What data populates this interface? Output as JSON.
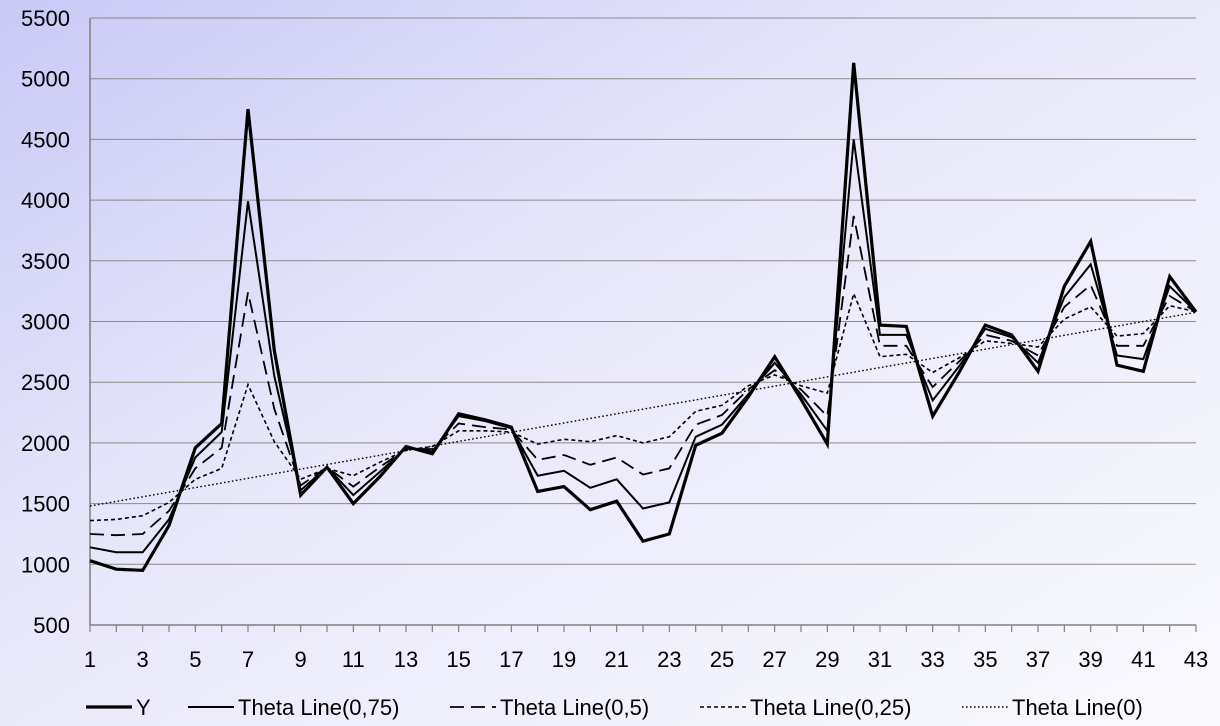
{
  "chart_data": {
    "type": "line",
    "title": "",
    "xlabel": "",
    "ylabel": "",
    "x": [
      1,
      2,
      3,
      4,
      5,
      6,
      7,
      8,
      9,
      10,
      11,
      12,
      13,
      14,
      15,
      16,
      17,
      18,
      19,
      20,
      21,
      22,
      23,
      24,
      25,
      26,
      27,
      28,
      29,
      30,
      31,
      32,
      33,
      34,
      35,
      36,
      37,
      38,
      39,
      40,
      41,
      42,
      43
    ],
    "x_tick_labels": [
      "1",
      "3",
      "5",
      "7",
      "9",
      "11",
      "13",
      "15",
      "17",
      "19",
      "21",
      "23",
      "25",
      "27",
      "29",
      "31",
      "33",
      "35",
      "37",
      "39",
      "41",
      "43"
    ],
    "y_tick_labels": [
      "500",
      "1000",
      "1500",
      "2000",
      "2500",
      "3000",
      "3500",
      "4000",
      "4500",
      "5000",
      "5500"
    ],
    "ylim": [
      500,
      5500
    ],
    "grid": "horizontal",
    "legend_position": "bottom",
    "series": [
      {
        "name": "Y",
        "style": "solid-thick",
        "values": [
          1030,
          960,
          950,
          1320,
          1960,
          2160,
          4750,
          2760,
          1570,
          1800,
          1500,
          1720,
          1970,
          1910,
          2240,
          2190,
          2130,
          1600,
          1640,
          1450,
          1520,
          1190,
          1250,
          1980,
          2080,
          2380,
          2710,
          2360,
          1990,
          5130,
          2970,
          2960,
          2220,
          2580,
          2970,
          2890,
          2590,
          3290,
          3660,
          2640,
          2590,
          3370,
          3080
        ]
      },
      {
        "name": "Theta Line(0,75)",
        "style": "solid-thin",
        "values": [
          1140,
          1100,
          1100,
          1370,
          1880,
          2090,
          3990,
          2550,
          1610,
          1800,
          1570,
          1760,
          1960,
          1930,
          2220,
          2180,
          2120,
          1730,
          1770,
          1630,
          1700,
          1460,
          1510,
          2050,
          2150,
          2400,
          2660,
          2400,
          2100,
          4500,
          2890,
          2890,
          2350,
          2630,
          2940,
          2870,
          2660,
          3200,
          3470,
          2720,
          2690,
          3290,
          3080
        ]
      },
      {
        "name": "Theta Line(0,5)",
        "style": "dashed",
        "values": [
          1250,
          1240,
          1250,
          1440,
          1790,
          1960,
          3240,
          2280,
          1650,
          1800,
          1640,
          1800,
          1950,
          1950,
          2160,
          2130,
          2110,
          1860,
          1900,
          1820,
          1880,
          1740,
          1790,
          2150,
          2230,
          2440,
          2600,
          2440,
          2220,
          3870,
          2800,
          2800,
          2460,
          2670,
          2890,
          2840,
          2720,
          3120,
          3300,
          2800,
          2800,
          3210,
          3080
        ]
      },
      {
        "name": "Theta Line(0,25)",
        "style": "short-dashed",
        "values": [
          1360,
          1370,
          1400,
          1510,
          1700,
          1790,
          2480,
          2010,
          1700,
          1790,
          1730,
          1840,
          1940,
          1970,
          2100,
          2100,
          2090,
          1990,
          2030,
          2010,
          2060,
          2000,
          2050,
          2260,
          2310,
          2470,
          2560,
          2470,
          2410,
          3230,
          2710,
          2730,
          2580,
          2700,
          2840,
          2820,
          2790,
          3020,
          3120,
          2880,
          2900,
          3130,
          3080
        ]
      },
      {
        "name": "Theta Line(0)",
        "style": "dotted",
        "values": [
          1480,
          1518,
          1556,
          1594,
          1632,
          1670,
          1708,
          1746,
          1784,
          1822,
          1860,
          1898,
          1936,
          1974,
          2012,
          2050,
          2088,
          2126,
          2164,
          2202,
          2240,
          2278,
          2316,
          2354,
          2392,
          2430,
          2468,
          2506,
          2544,
          2582,
          2620,
          2658,
          2696,
          2734,
          2772,
          2810,
          2848,
          2886,
          2924,
          2962,
          3000,
          3038,
          3076
        ]
      }
    ]
  }
}
